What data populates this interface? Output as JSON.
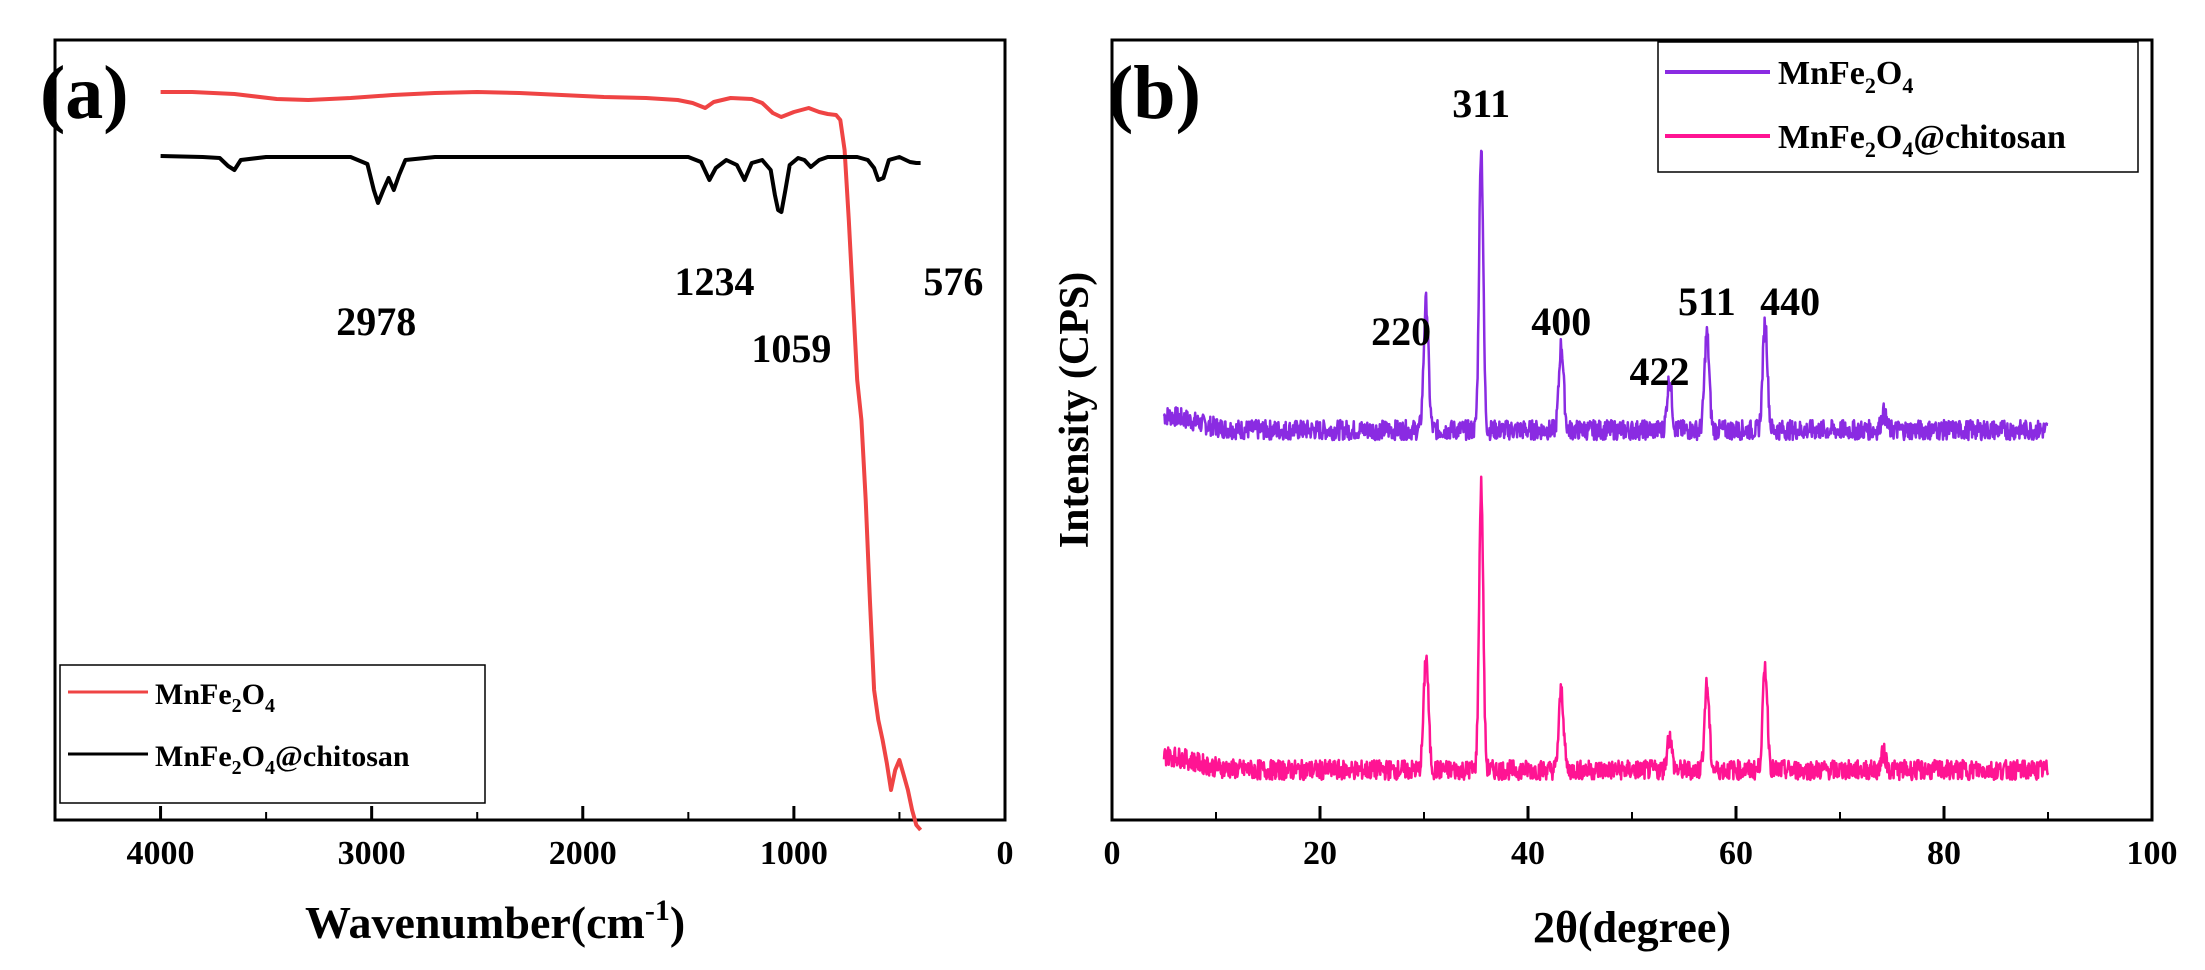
{
  "chart_data": [
    {
      "type": "line",
      "panel_label": "(a)",
      "xlabel": "Wavenumber(cm",
      "xlabel_sup": "-1",
      "xlabel_tail": ")",
      "ylabel": "",
      "xlim": [
        4500,
        0
      ],
      "x_ticks": [
        "4000",
        "3000",
        "2000",
        "1000",
        "0"
      ],
      "grid": false,
      "legend_position": "bottom-left",
      "legend": [
        {
          "name": "MnFe",
          "sub1": "2",
          "mid": "O",
          "sub2": "4",
          "tail": "",
          "color": "#ef4444"
        },
        {
          "name": "MnFe",
          "sub1": "2",
          "mid": "O",
          "sub2": "4",
          "tail": "@chitosan",
          "color": "#000000"
        }
      ],
      "series": [
        {
          "name": "MnFe2O4",
          "color": "#ef4444",
          "points": [
            [
              4000,
              92
            ],
            [
              3850,
              92
            ],
            [
              3650,
              94
            ],
            [
              3450,
              99
            ],
            [
              3300,
              100
            ],
            [
              3100,
              98
            ],
            [
              2900,
              95
            ],
            [
              2700,
              93
            ],
            [
              2500,
              92
            ],
            [
              2300,
              93
            ],
            [
              2100,
              95
            ],
            [
              1900,
              97
            ],
            [
              1700,
              98
            ],
            [
              1550,
              100
            ],
            [
              1480,
              103
            ],
            [
              1420,
              108
            ],
            [
              1380,
              102
            ],
            [
              1300,
              98
            ],
            [
              1200,
              99
            ],
            [
              1150,
              103
            ],
            [
              1100,
              113
            ],
            [
              1060,
              117
            ],
            [
              1000,
              112
            ],
            [
              930,
              108
            ],
            [
              880,
              112
            ],
            [
              840,
              114
            ],
            [
              800,
              115
            ],
            [
              780,
              120
            ],
            [
              760,
              150
            ],
            [
              740,
              220
            ],
            [
              720,
              300
            ],
            [
              700,
              380
            ],
            [
              680,
              420
            ],
            [
              660,
              500
            ],
            [
              640,
              600
            ],
            [
              620,
              690
            ],
            [
              600,
              720
            ],
            [
              580,
              740
            ],
            [
              560,
              763
            ],
            [
              540,
              790
            ],
            [
              520,
              770
            ],
            [
              500,
              760
            ],
            [
              480,
              775
            ],
            [
              460,
              790
            ],
            [
              440,
              810
            ],
            [
              420,
              825
            ],
            [
              400,
              830
            ]
          ]
        },
        {
          "name": "MnFe2O4@chitosan",
          "color": "#000000",
          "points": [
            [
              4000,
              156
            ],
            [
              3800,
              157
            ],
            [
              3720,
              158
            ],
            [
              3680,
              166
            ],
            [
              3650,
              170
            ],
            [
              3620,
              160
            ],
            [
              3500,
              157
            ],
            [
              3100,
              157
            ],
            [
              3020,
              164
            ],
            [
              2990,
              190
            ],
            [
              2970,
              203
            ],
            [
              2945,
              190
            ],
            [
              2920,
              178
            ],
            [
              2895,
              190
            ],
            [
              2870,
              175
            ],
            [
              2840,
              160
            ],
            [
              2700,
              157
            ],
            [
              1500,
              157
            ],
            [
              1440,
              162
            ],
            [
              1400,
              180
            ],
            [
              1370,
              168
            ],
            [
              1320,
              160
            ],
            [
              1270,
              165
            ],
            [
              1234,
              180
            ],
            [
              1200,
              163
            ],
            [
              1150,
              160
            ],
            [
              1110,
              170
            ],
            [
              1090,
              195
            ],
            [
              1075,
              210
            ],
            [
              1059,
              212
            ],
            [
              1040,
              190
            ],
            [
              1020,
              165
            ],
            [
              980,
              158
            ],
            [
              950,
              160
            ],
            [
              920,
              167
            ],
            [
              880,
              160
            ],
            [
              840,
              157
            ],
            [
              780,
              157
            ],
            [
              700,
              157
            ],
            [
              650,
              160
            ],
            [
              620,
              168
            ],
            [
              600,
              180
            ],
            [
              576,
              178
            ],
            [
              550,
              160
            ],
            [
              500,
              157
            ],
            [
              450,
              162
            ],
            [
              420,
              163
            ],
            [
              400,
              163
            ]
          ]
        }
      ],
      "annotations": [
        {
          "text": "2978",
          "x": 2978
        },
        {
          "text": "1234",
          "x": 1234
        },
        {
          "text": "1059",
          "x": 1059
        },
        {
          "text": "576",
          "x": 576
        }
      ]
    },
    {
      "type": "line",
      "panel_label": "(b)",
      "xlabel": "2θ(degree)",
      "ylabel": "Intensity (CPS)",
      "xlim": [
        0,
        100
      ],
      "x_ticks": [
        "0",
        "20",
        "40",
        "60",
        "80",
        "100"
      ],
      "grid": false,
      "legend_position": "top-right",
      "legend": [
        {
          "name": "MnFe",
          "sub1": "2",
          "mid": "O",
          "sub2": "4",
          "tail": "",
          "color": "#8a2be2"
        },
        {
          "name": "MnFe",
          "sub1": "2",
          "mid": "O",
          "sub2": "4",
          "tail": "@chitosan",
          "color": "#ff1493"
        }
      ],
      "series": [
        {
          "name": "MnFe2O4",
          "color": "#8a2be2",
          "baseline_start": 5,
          "baseline_end": 90,
          "peaks": [
            [
              30.2,
              0.45
            ],
            [
              35.5,
              1.0
            ],
            [
              43.2,
              0.3
            ],
            [
              53.6,
              0.18
            ],
            [
              57.2,
              0.34
            ],
            [
              62.8,
              0.38
            ],
            [
              74.2,
              0.06
            ]
          ]
        },
        {
          "name": "MnFe2O4@chitosan",
          "color": "#ff1493",
          "baseline_start": 5,
          "baseline_end": 90,
          "peaks": [
            [
              30.2,
              0.4
            ],
            [
              35.5,
              1.0
            ],
            [
              43.2,
              0.28
            ],
            [
              53.6,
              0.12
            ],
            [
              57.2,
              0.3
            ],
            [
              62.8,
              0.36
            ],
            [
              74.2,
              0.06
            ]
          ]
        }
      ],
      "annotations": [
        {
          "text": "220",
          "x": 30.2
        },
        {
          "text": "311",
          "x": 35.5
        },
        {
          "text": "400",
          "x": 43.2
        },
        {
          "text": "422",
          "x": 53.6
        },
        {
          "text": "511",
          "x": 57.2
        },
        {
          "text": "440",
          "x": 62.8
        }
      ]
    }
  ]
}
